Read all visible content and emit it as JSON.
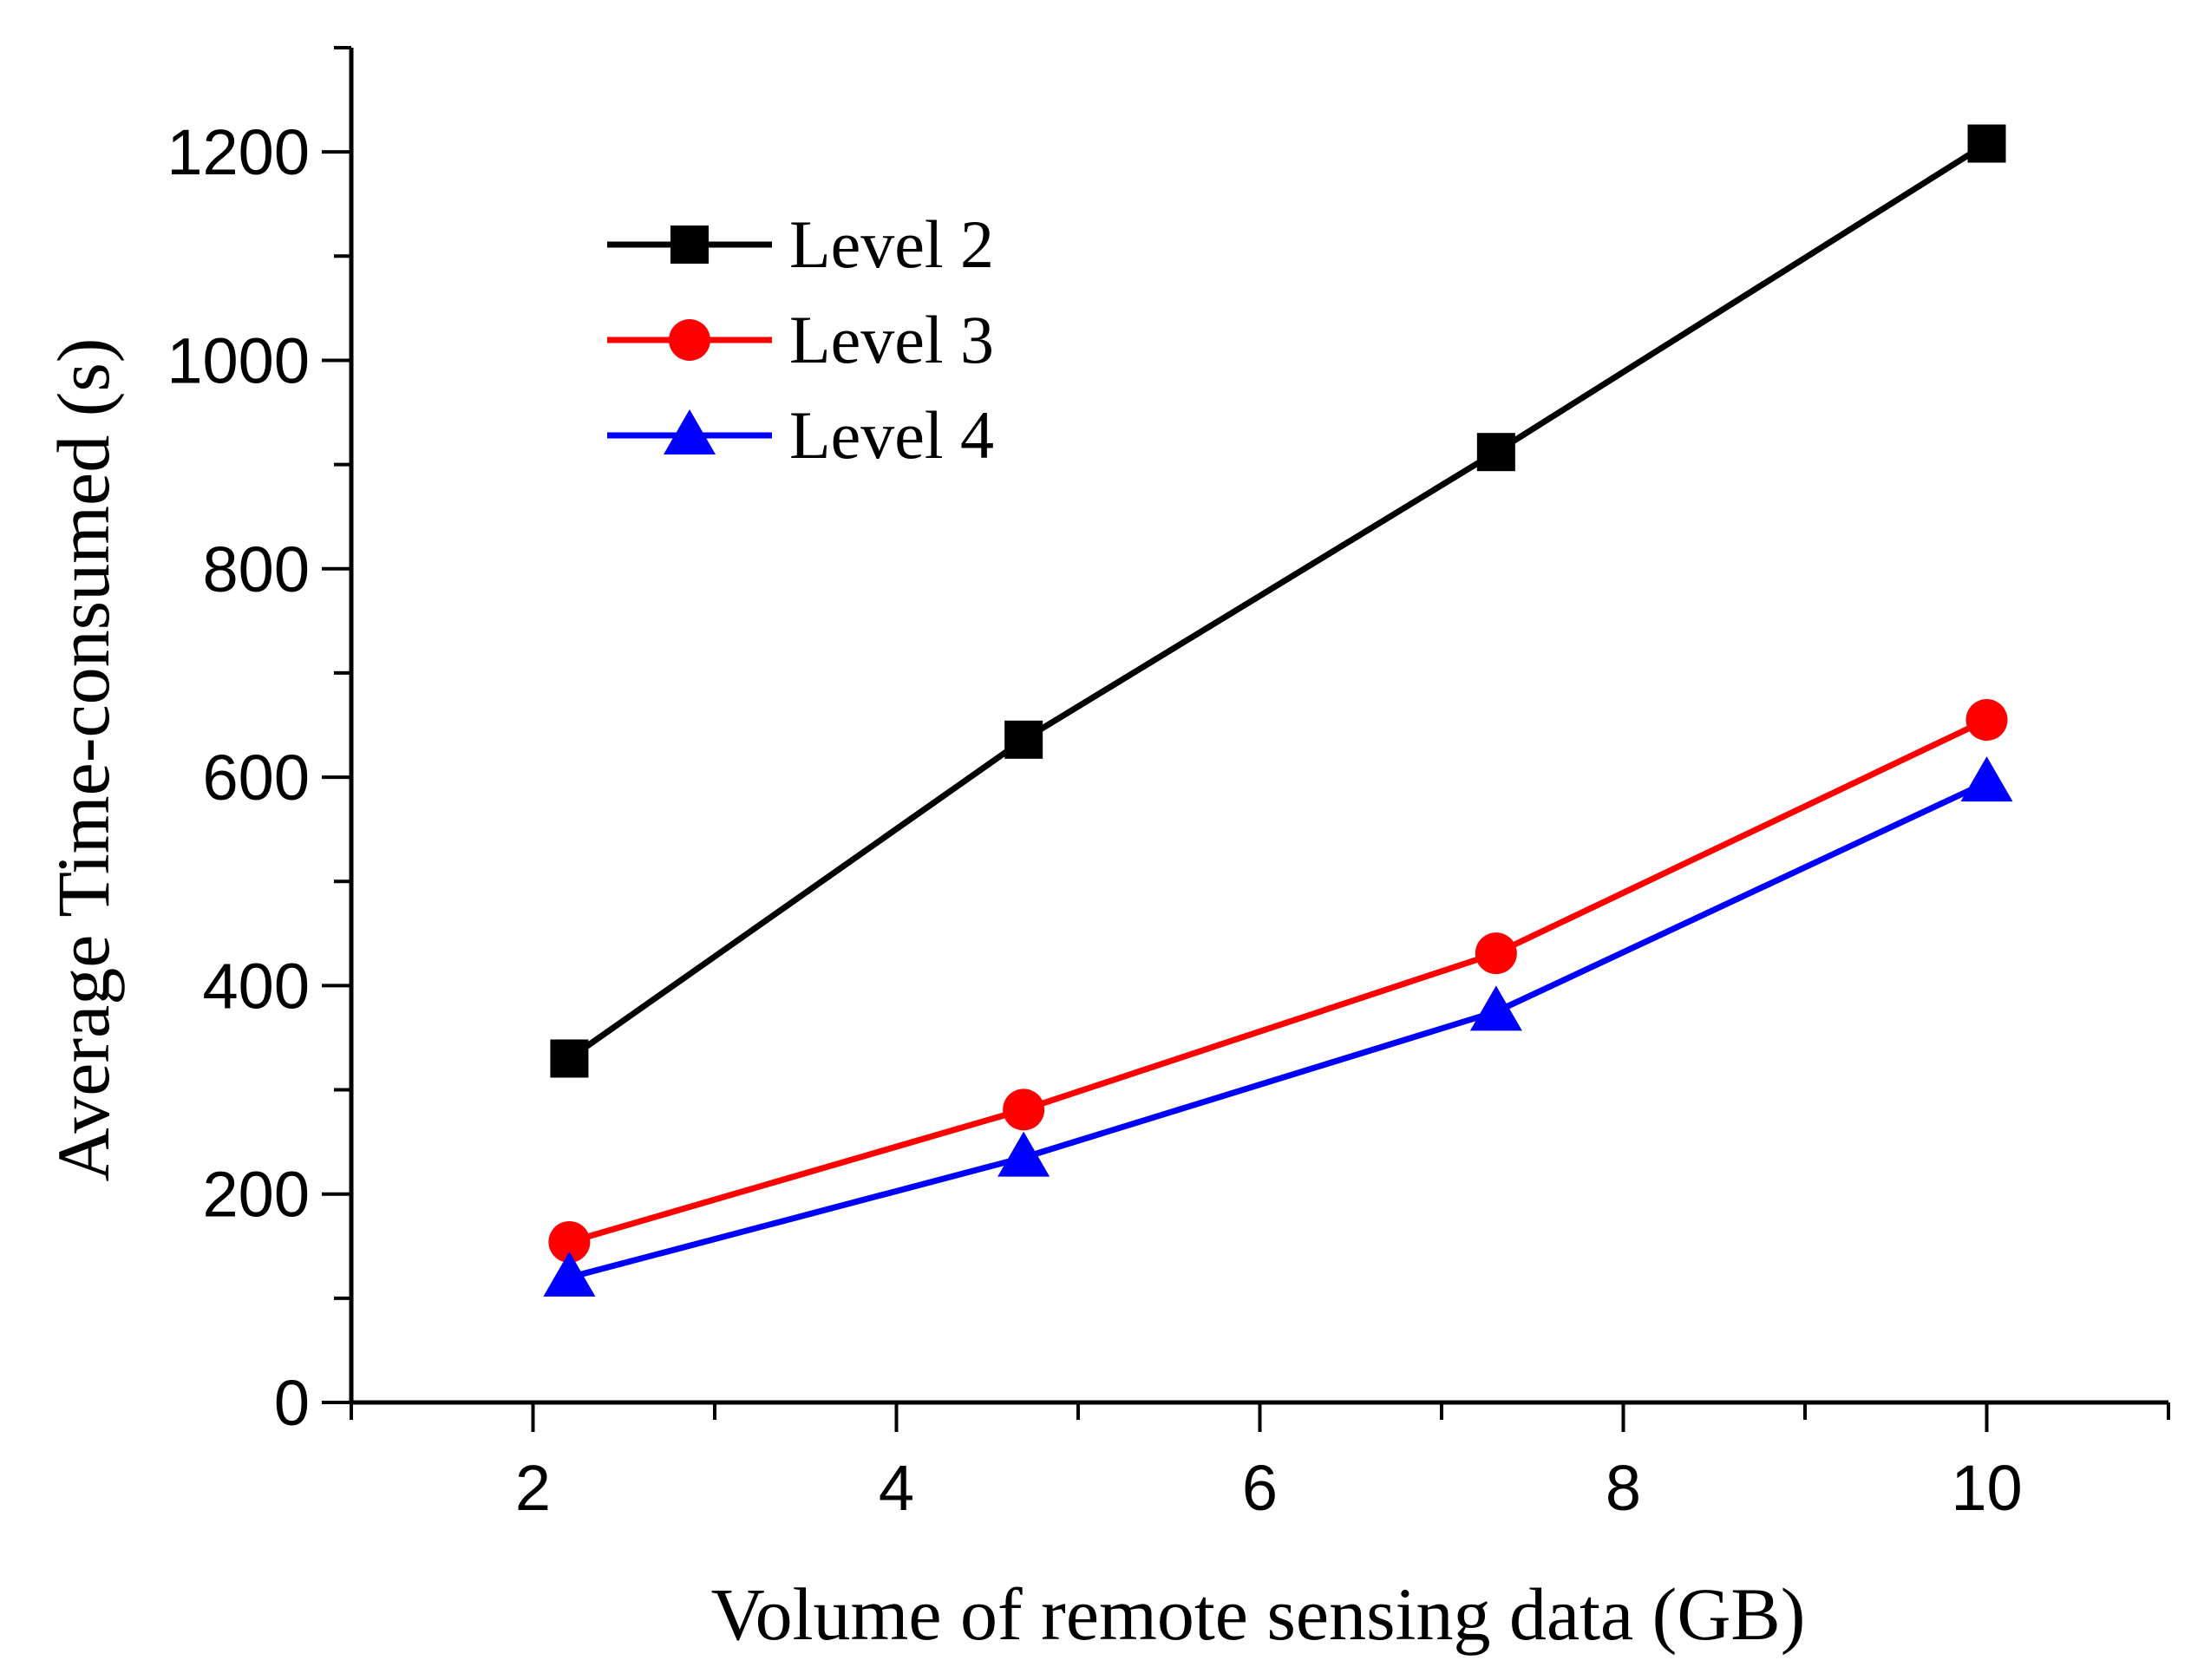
{
  "chart_data": {
    "type": "line",
    "title": "",
    "xlabel": "Volume of remote sensing data (GB)",
    "ylabel": "Average Time-consumed (s)",
    "xlim": [
      1,
      11
    ],
    "ylim": [
      0,
      1300
    ],
    "xticks": [
      2,
      4,
      6,
      8,
      10
    ],
    "yticks": [
      0,
      200,
      400,
      600,
      800,
      1000,
      1200
    ],
    "grid": false,
    "legend_position": "top-left",
    "x": [
      2.2,
      4.7,
      7.3,
      10
    ],
    "series": [
      {
        "name": "Level 2",
        "values": [
          330,
          636,
          912,
          1208
        ],
        "color": "#000000",
        "marker": "square"
      },
      {
        "name": "Level 3",
        "values": [
          154,
          281,
          431,
          655
        ],
        "color": "#ff0000",
        "marker": "circle"
      },
      {
        "name": "Level 4",
        "values": [
          120,
          235,
          375,
          595
        ],
        "color": "#0000ff",
        "marker": "triangle"
      }
    ]
  }
}
